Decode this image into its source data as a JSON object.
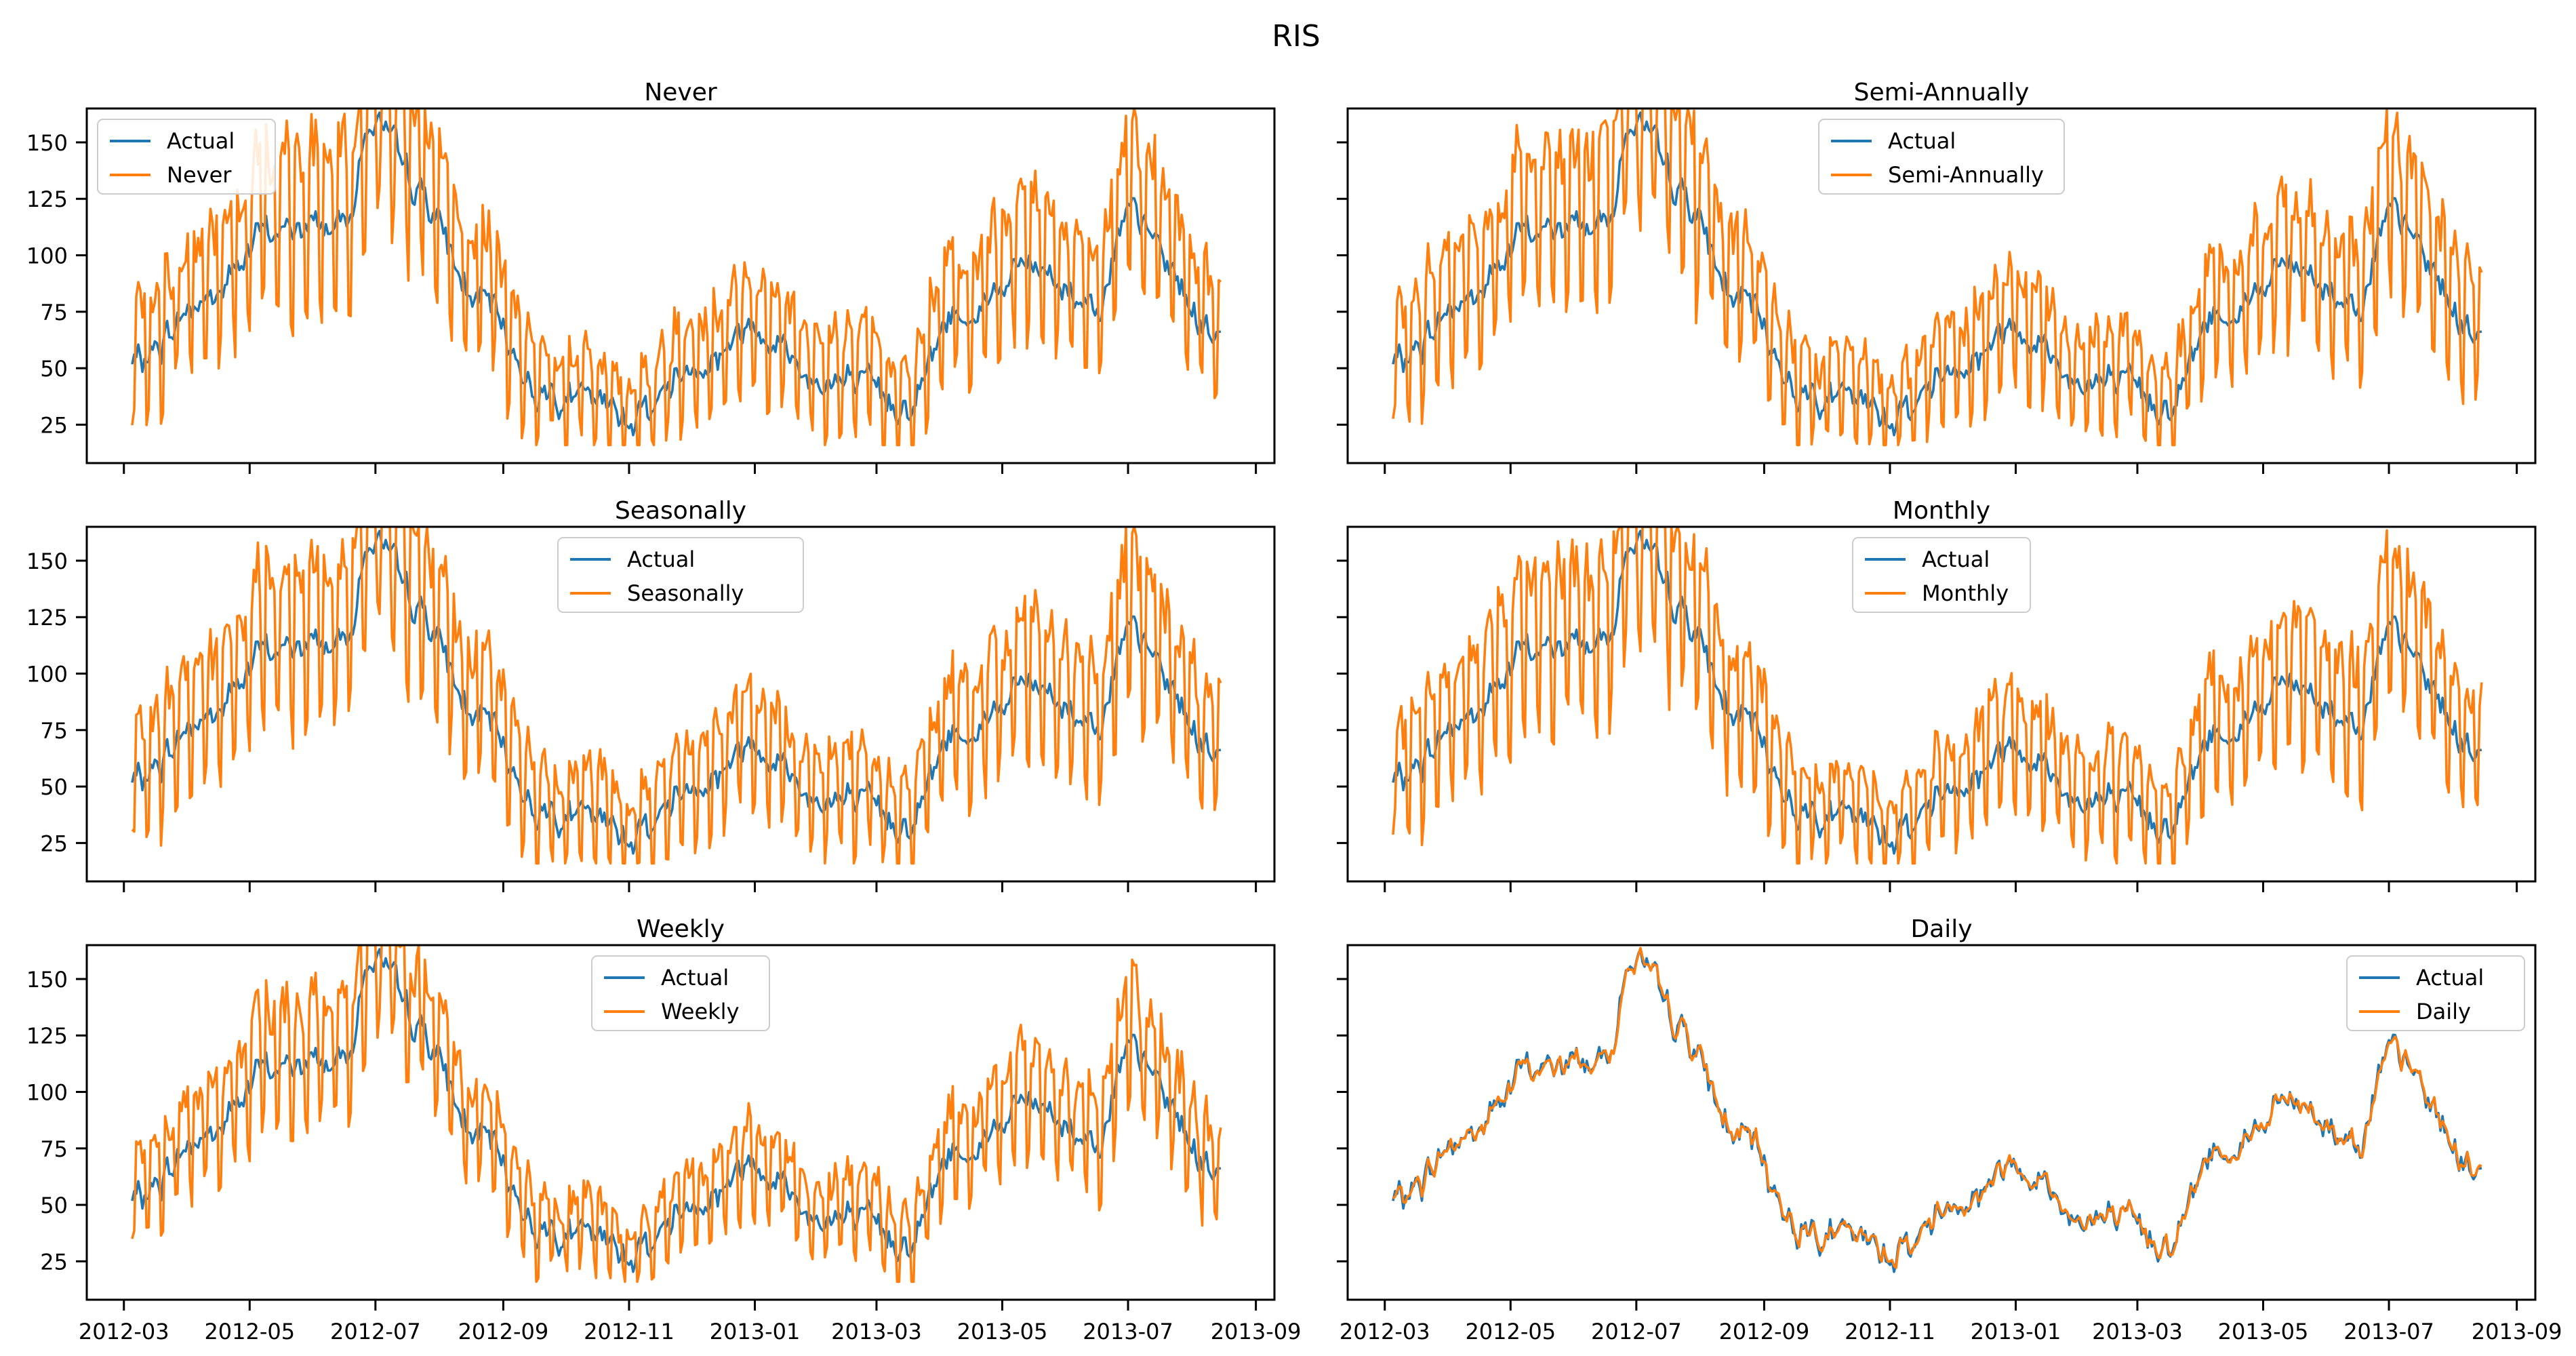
{
  "suptitle": "RIS",
  "colors": {
    "actual": "#1f77b4",
    "forecast": "#ff7f0e"
  },
  "x_ticks": [
    "2012-03",
    "2012-05",
    "2012-07",
    "2012-09",
    "2012-11",
    "2013-01",
    "2013-03",
    "2013-05",
    "2013-07",
    "2013-09"
  ],
  "y_ticks": [
    "25",
    "50",
    "75",
    "100",
    "125",
    "150"
  ],
  "chart_data": [
    {
      "type": "line",
      "title": "Never",
      "legend": [
        "Actual",
        "Never"
      ],
      "legend_position": "upper-left",
      "xlim": [
        "2012-02-12",
        "2013-09-10"
      ],
      "ylim": [
        8,
        165
      ],
      "x_range": [
        "2012-03-05",
        "2013-08-15"
      ],
      "series": [
        {
          "name": "Actual",
          "values": [
            [
              "2012-03-05",
              52
            ],
            [
              "2012-04-10",
              80
            ],
            [
              "2012-05-10",
              110
            ],
            [
              "2012-06-15",
              115
            ],
            [
              "2012-06-30",
              160
            ],
            [
              "2012-07-20",
              130
            ],
            [
              "2012-08-20",
              80
            ],
            [
              "2012-09-20",
              40
            ],
            [
              "2012-11-01",
              30
            ],
            [
              "2012-12-10",
              55
            ],
            [
              "2013-01-01",
              70
            ],
            [
              "2013-02-01",
              45
            ],
            [
              "2013-03-15",
              35
            ],
            [
              "2013-04-10",
              75
            ],
            [
              "2013-05-15",
              95
            ],
            [
              "2013-06-15",
              80
            ],
            [
              "2013-07-02",
              115
            ],
            [
              "2013-08-15",
              65
            ]
          ]
        },
        {
          "name": "Never",
          "pattern": "weekly oscillation around actual, clipped at 16 and 165"
        }
      ]
    },
    {
      "type": "line",
      "title": "Semi-Annually",
      "legend": [
        "Actual",
        "Semi-Annually"
      ],
      "legend_position": "upper-center",
      "xlim": [
        "2012-02-12",
        "2013-09-10"
      ],
      "ylim": [
        8,
        165
      ]
    },
    {
      "type": "line",
      "title": "Seasonally",
      "legend": [
        "Actual",
        "Seasonally"
      ],
      "legend_position": "upper-center",
      "xlim": [
        "2012-02-12",
        "2013-09-10"
      ],
      "ylim": [
        8,
        165
      ]
    },
    {
      "type": "line",
      "title": "Monthly",
      "legend": [
        "Actual",
        "Monthly"
      ],
      "legend_position": "upper-center",
      "xlim": [
        "2012-02-12",
        "2013-09-10"
      ],
      "ylim": [
        8,
        165
      ]
    },
    {
      "type": "line",
      "title": "Weekly",
      "legend": [
        "Actual",
        "Weekly"
      ],
      "legend_position": "upper-center",
      "xlim": [
        "2012-02-12",
        "2013-09-10"
      ],
      "ylim": [
        8,
        165
      ]
    },
    {
      "type": "line",
      "title": "Daily",
      "legend": [
        "Actual",
        "Daily"
      ],
      "legend_position": "upper-right",
      "xlim": [
        "2012-02-12",
        "2013-09-10"
      ],
      "ylim": [
        8,
        165
      ]
    }
  ]
}
